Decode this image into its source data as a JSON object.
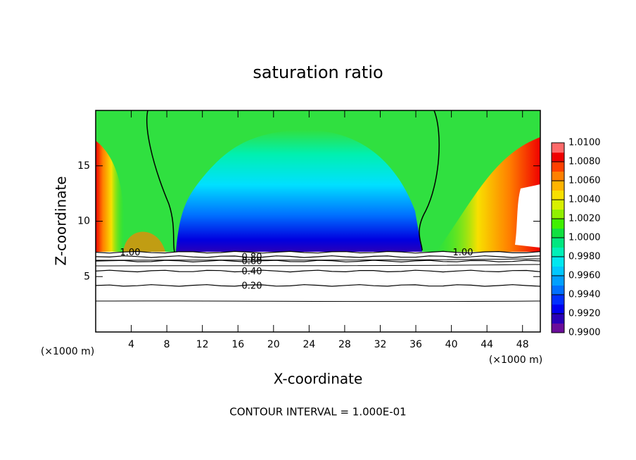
{
  "chart_data": {
    "type": "contour",
    "title": "saturation ratio",
    "xlabel": "X-coordinate",
    "ylabel": "Z-coordinate",
    "x_unit_label": "(×1000 m)",
    "footer": "CONTOUR INTERVAL = 1.000E-01",
    "xlim": [
      0,
      50
    ],
    "ylim": [
      0,
      20
    ],
    "xticks": [
      4,
      8,
      12,
      16,
      20,
      24,
      28,
      32,
      36,
      40,
      44,
      48
    ],
    "yticks": [
      5,
      10,
      15
    ],
    "contour_levels": [
      {
        "value": 1.0,
        "label": "1.00",
        "z": 7.2
      },
      {
        "value": 0.8,
        "label": "0.80",
        "z": 6.8
      },
      {
        "value": 0.6,
        "label": "0.60",
        "z": 6.4
      },
      {
        "value": 0.4,
        "label": "0.40",
        "z": 5.5
      },
      {
        "value": 0.2,
        "label": "0.20",
        "z": 4.2
      }
    ],
    "colorbar": {
      "lim": [
        0.99,
        1.01
      ],
      "ticks": [
        {
          "value": 0.99,
          "label": "0.9900"
        },
        {
          "value": 0.992,
          "label": "0.9920"
        },
        {
          "value": 0.994,
          "label": "0.9940"
        },
        {
          "value": 0.996,
          "label": "0.9960"
        },
        {
          "value": 0.998,
          "label": "0.9980"
        },
        {
          "value": 1.0,
          "label": "1.0000"
        },
        {
          "value": 1.002,
          "label": "1.0020"
        },
        {
          "value": 1.004,
          "label": "1.0040"
        },
        {
          "value": 1.006,
          "label": "1.0060"
        },
        {
          "value": 1.008,
          "label": "1.0080"
        },
        {
          "value": 1.01,
          "label": "1.0100"
        }
      ],
      "colors": [
        "#6a0d9a",
        "#2a00b8",
        "#0000f0",
        "#0030ff",
        "#0070ff",
        "#00a0ff",
        "#00c8ff",
        "#00e8f0",
        "#00f0b8",
        "#00e880",
        "#10e040",
        "#40f000",
        "#90f000",
        "#d8f000",
        "#f8e000",
        "#ffb400",
        "#ff8000",
        "#ff4000",
        "#f00000",
        "#ff6a6a"
      ]
    }
  }
}
